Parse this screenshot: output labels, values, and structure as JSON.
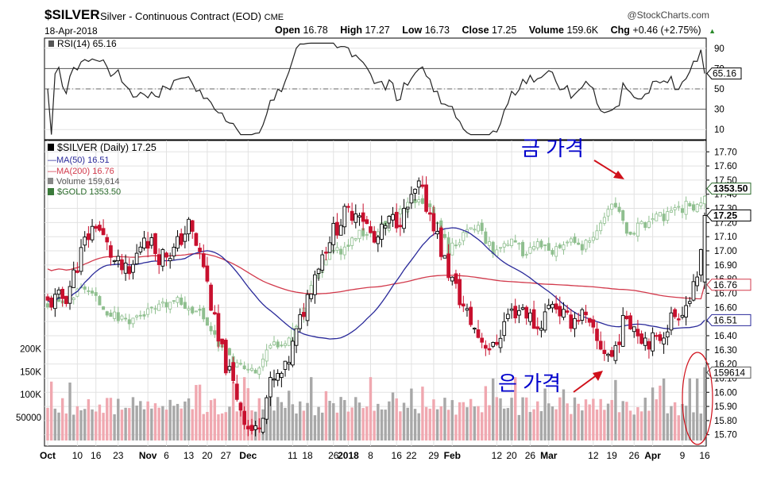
{
  "header": {
    "symbol": "$SILVER",
    "description": "Silver - Continuous Contract (EOD)",
    "exchange": "CME",
    "date": "18-Apr-2018",
    "watermark": "@StockCharts.com",
    "open_label": "Open",
    "open": "16.78",
    "high_label": "High",
    "high": "17.27",
    "low_label": "Low",
    "low": "16.73",
    "close_label": "Close",
    "close": "17.25",
    "volume_label": "Volume",
    "volume": "159.6K",
    "chg_label": "Chg",
    "chg": "+0.46 (+2.75%)"
  },
  "rsi_panel": {
    "legend": "RSI(14) 65.16",
    "last_value": "65.16",
    "ticks": [
      90,
      70,
      50,
      30,
      10
    ],
    "ylim": [
      0,
      100
    ],
    "levels": [
      70,
      30
    ]
  },
  "legend": {
    "price": "$SILVER (Daily) 17.25",
    "ma50": "MA(50) 16.51",
    "ma200": "MA(200) 16.76",
    "volume": "Volume 159,614",
    "gold": "$GOLD 1353.50"
  },
  "annotations": {
    "gold_price": "금 가격",
    "silver_price": "은 가격"
  },
  "colors": {
    "up": "#000000",
    "down": "#c8102e",
    "gold": "#8fbf8f",
    "ma50": "#2a2a9a",
    "ma200": "#d23a4c",
    "vol_up": "#a8a8a8",
    "vol_down": "#f0a8b0",
    "annotation": "#0000cc",
    "arrow": "#d0101a"
  },
  "chart_data": {
    "type": "candlestick",
    "price_ticks": [
      17.7,
      17.6,
      17.5,
      17.4,
      17.3,
      17.2,
      17.1,
      17.0,
      16.9,
      16.8,
      16.7,
      16.6,
      16.5,
      16.4,
      16.3,
      16.2,
      16.1,
      16.0,
      15.9,
      15.8,
      15.7
    ],
    "price_ylim": [
      15.62,
      17.78
    ],
    "volume_ticks": [
      "200K",
      "150K",
      "100K",
      "50000"
    ],
    "volume_tick_values": [
      200000,
      150000,
      100000,
      50000
    ],
    "x_ticks": [
      "Oct",
      "10",
      "16",
      "23",
      "Nov",
      "6",
      "13",
      "20",
      "27",
      "Dec",
      "11",
      "18",
      "26",
      "2018",
      "8",
      "16",
      "22",
      "29",
      "Feb",
      "12",
      "20",
      "26",
      "Mar",
      "12",
      "19",
      "26",
      "Apr",
      "9",
      "16"
    ],
    "x_ticks_bold": [
      "Oct",
      "Nov",
      "Dec",
      "2018",
      "Feb",
      "Mar",
      "Apr"
    ],
    "last_labels": {
      "gold": "1353.50",
      "close": "17.25",
      "ma200": "16.76",
      "ma50": "16.51",
      "volume": "159614"
    },
    "silver_close_anchors": [
      [
        0,
        16.63
      ],
      [
        5,
        16.68
      ],
      [
        10,
        17.06
      ],
      [
        13,
        17.2
      ],
      [
        18,
        16.92
      ],
      [
        22,
        16.82
      ],
      [
        26,
        17.12
      ],
      [
        30,
        16.97
      ],
      [
        34,
        17.0
      ],
      [
        38,
        17.18
      ],
      [
        42,
        16.9
      ],
      [
        46,
        16.35
      ],
      [
        50,
        16.05
      ],
      [
        54,
        15.75
      ],
      [
        56,
        15.72
      ],
      [
        60,
        16.05
      ],
      [
        64,
        16.15
      ],
      [
        68,
        16.5
      ],
      [
        72,
        16.85
      ],
      [
        76,
        17.1
      ],
      [
        80,
        17.25
      ],
      [
        84,
        17.3
      ],
      [
        88,
        17.05
      ],
      [
        92,
        17.2
      ],
      [
        96,
        17.25
      ],
      [
        100,
        17.45
      ],
      [
        104,
        17.2
      ],
      [
        106,
        17.0
      ],
      [
        108,
        16.85
      ],
      [
        112,
        16.6
      ],
      [
        116,
        16.4
      ],
      [
        120,
        16.3
      ],
      [
        124,
        16.55
      ],
      [
        128,
        16.6
      ],
      [
        132,
        16.45
      ],
      [
        136,
        16.65
      ],
      [
        140,
        16.5
      ],
      [
        144,
        16.55
      ],
      [
        148,
        16.35
      ],
      [
        152,
        16.25
      ],
      [
        156,
        16.55
      ],
      [
        160,
        16.4
      ],
      [
        164,
        16.35
      ],
      [
        168,
        16.52
      ],
      [
        172,
        16.62
      ],
      [
        175,
        16.76
      ],
      [
        177,
        17.25
      ]
    ],
    "gold_anchors": [
      [
        0,
        1284
      ],
      [
        5,
        1285
      ],
      [
        10,
        1295
      ],
      [
        13,
        1286
      ],
      [
        18,
        1275
      ],
      [
        22,
        1273
      ],
      [
        26,
        1277
      ],
      [
        30,
        1280
      ],
      [
        34,
        1285
      ],
      [
        38,
        1282
      ],
      [
        42,
        1275
      ],
      [
        46,
        1258
      ],
      [
        50,
        1245
      ],
      [
        54,
        1240
      ],
      [
        56,
        1238
      ],
      [
        60,
        1255
      ],
      [
        64,
        1260
      ],
      [
        68,
        1275
      ],
      [
        72,
        1302
      ],
      [
        76,
        1318
      ],
      [
        80,
        1320
      ],
      [
        84,
        1330
      ],
      [
        88,
        1330
      ],
      [
        92,
        1338
      ],
      [
        96,
        1345
      ],
      [
        100,
        1355
      ],
      [
        104,
        1340
      ],
      [
        106,
        1330
      ],
      [
        108,
        1320
      ],
      [
        112,
        1328
      ],
      [
        116,
        1335
      ],
      [
        120,
        1318
      ],
      [
        124,
        1325
      ],
      [
        128,
        1318
      ],
      [
        132,
        1322
      ],
      [
        136,
        1315
      ],
      [
        140,
        1325
      ],
      [
        144,
        1320
      ],
      [
        148,
        1328
      ],
      [
        152,
        1352
      ],
      [
        156,
        1330
      ],
      [
        160,
        1335
      ],
      [
        164,
        1340
      ],
      [
        168,
        1342
      ],
      [
        172,
        1348
      ],
      [
        175,
        1348
      ],
      [
        177,
        1353.5
      ]
    ]
  }
}
